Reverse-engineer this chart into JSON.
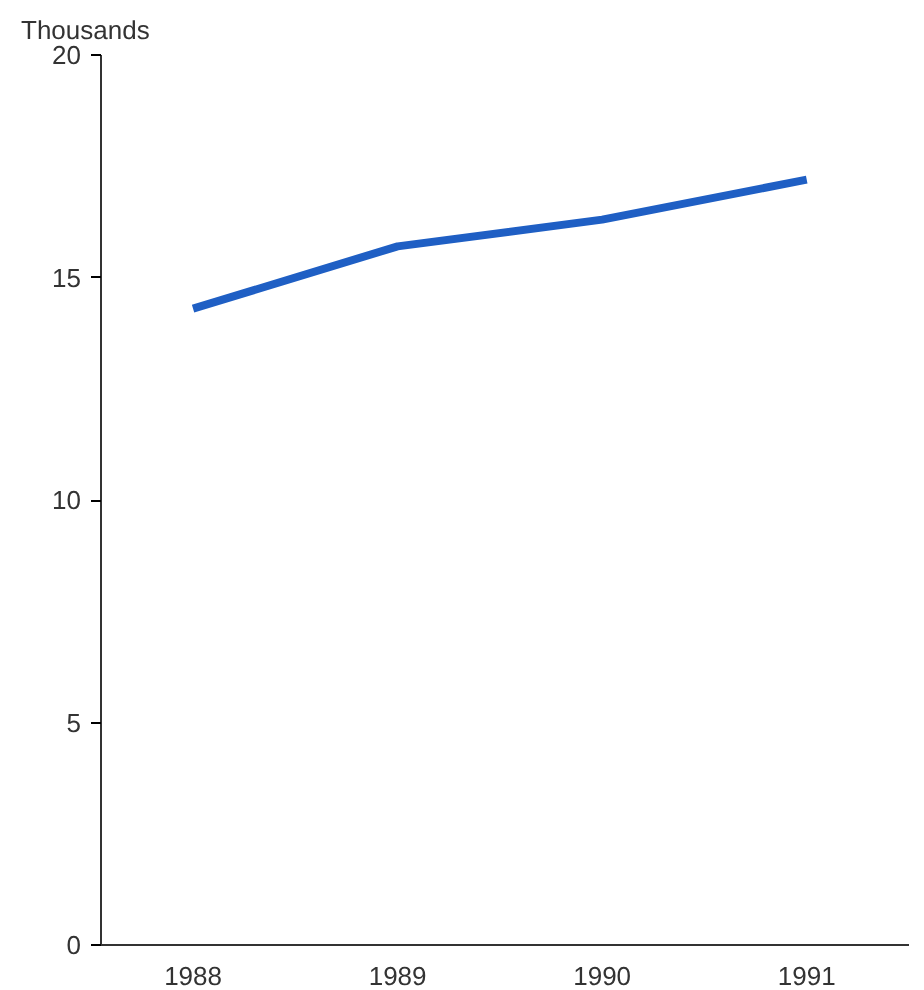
{
  "chart_data": {
    "type": "line",
    "ylabel": "Thousands",
    "x": [
      1988,
      1989,
      1990,
      1991
    ],
    "series": [
      {
        "color": "#1f5fc4",
        "values": [
          14.3,
          15.7,
          16.3,
          17.2
        ]
      }
    ],
    "xlim": [
      1987.55,
      1991.5
    ],
    "xticks": [
      1988,
      1989,
      1990,
      1991
    ],
    "ylim": [
      0,
      20
    ],
    "yticks": [
      0,
      5,
      10,
      15,
      20
    ],
    "grid": false,
    "marker": "none",
    "line_style": "solid"
  }
}
